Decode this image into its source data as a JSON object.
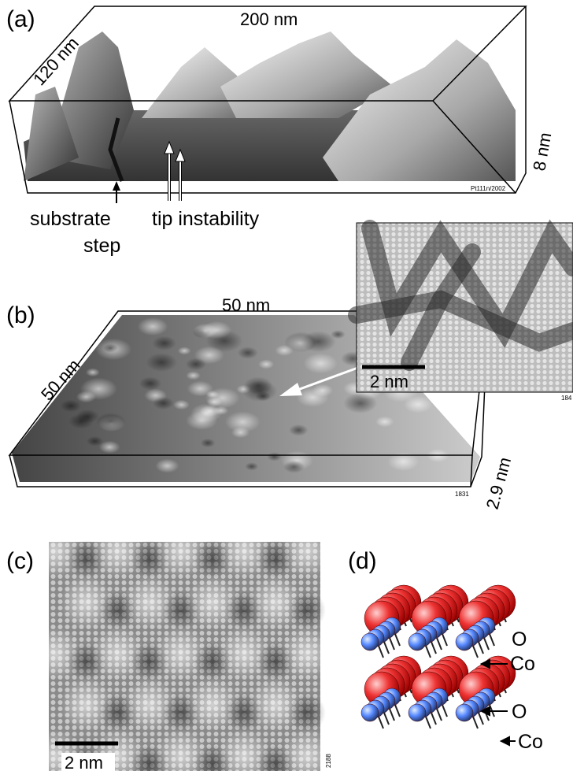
{
  "panel_a": {
    "label": "(a)",
    "width_label": "200 nm",
    "depth_label": "120 nm",
    "height_label": "8 nm",
    "file_id": "Pt111n/2002",
    "step_label": [
      "substrate",
      "step"
    ],
    "tip_label": "tip instability"
  },
  "panel_b": {
    "label": "(b)",
    "width_label": "50 nm",
    "depth_label": "50 nm",
    "height_label": "2.9 nm",
    "file_id": "1831",
    "inset_scale": "2 nm",
    "inset_file_id": "184"
  },
  "panel_c": {
    "label": "(c)",
    "scale": "2 nm",
    "file_id": "2188"
  },
  "panel_d": {
    "label": "(d)",
    "atoms": [
      "O",
      "Co",
      "O",
      "Co"
    ]
  }
}
